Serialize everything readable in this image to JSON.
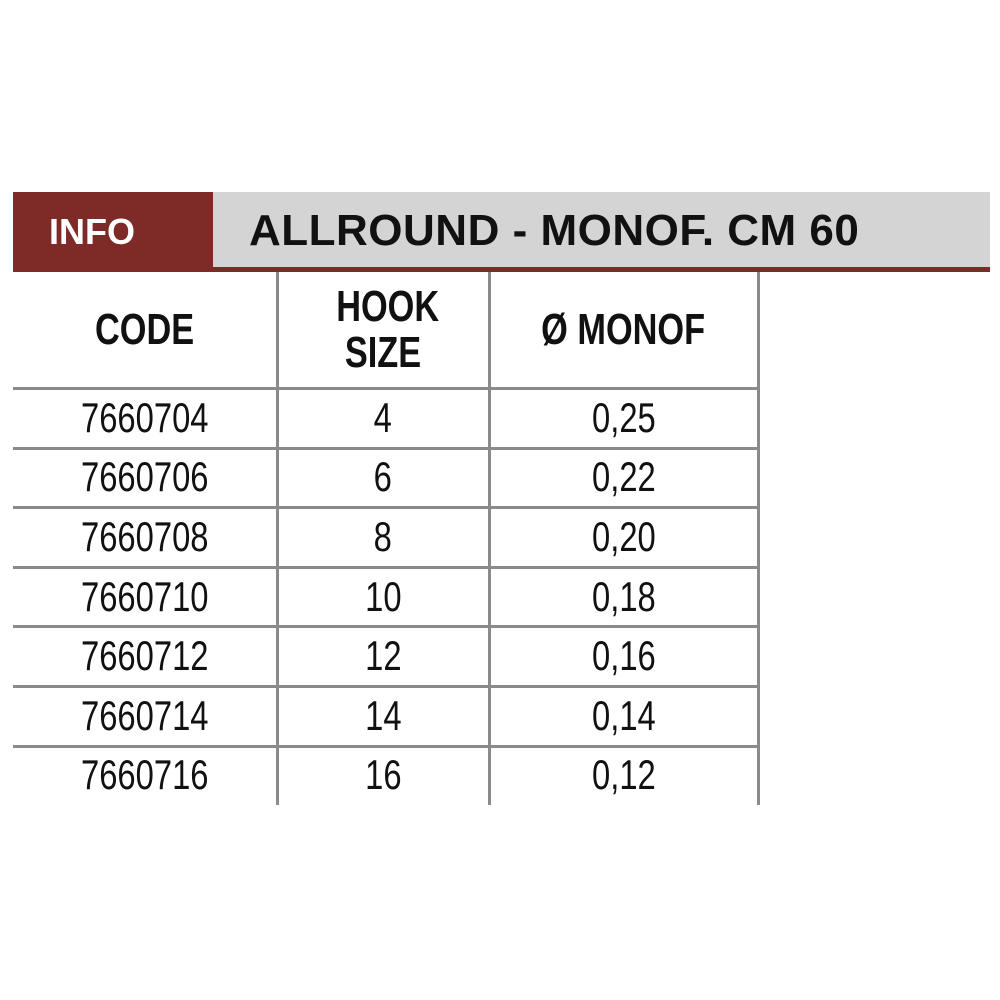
{
  "header": {
    "info_label": "INFO",
    "title": "ALLROUND - MONOF. CM 60"
  },
  "table": {
    "columns": [
      "CODE",
      "HOOK SIZE",
      "Ø MONOF"
    ],
    "rows": [
      [
        "7660704",
        "4",
        "0,25"
      ],
      [
        "7660706",
        "6",
        "0,22"
      ],
      [
        "7660708",
        "8",
        "0,20"
      ],
      [
        "7660710",
        "10",
        "0,18"
      ],
      [
        "7660712",
        "12",
        "0,16"
      ],
      [
        "7660714",
        "14",
        "0,14"
      ],
      [
        "7660716",
        "16",
        "0,12"
      ]
    ]
  },
  "colors": {
    "accent": "#7e2a27",
    "header_gray": "#d4d4d4",
    "grid": "#8a8a8a"
  }
}
